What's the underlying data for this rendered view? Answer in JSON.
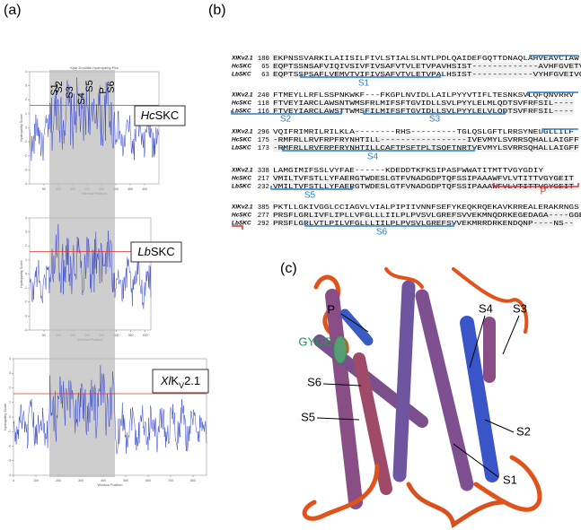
{
  "panel_a": {
    "label": "(a)",
    "plots": [
      {
        "title": "Kyte-Doolittle Hydropathy Plot",
        "xlabel": "Window Position",
        "ylabel": "Hydropathy Score",
        "label_parts": [
          {
            "text": "Hc",
            "italic": true
          },
          {
            "text": "SKC"
          }
        ],
        "xlim": [
          0,
          450
        ],
        "xticks": [
          50,
          100,
          150,
          200,
          250,
          300,
          350,
          400
        ],
        "ylim": [
          -4,
          4
        ],
        "yticks": [
          -4,
          -3,
          -2,
          -1,
          0,
          1,
          2,
          3,
          4
        ],
        "threshold": 1.6,
        "segments": [
          "S1",
          "S2",
          "S3",
          "S4",
          "S5",
          "P",
          "S6"
        ]
      },
      {
        "xlabel": "Window Position",
        "ylabel": "Hydropathy Score",
        "label_parts": [
          {
            "text": "Lb",
            "italic": true
          },
          {
            "text": "SKC"
          }
        ],
        "xlim": [
          0,
          420
        ],
        "xticks": [
          50,
          100,
          150,
          200,
          250,
          300,
          350,
          400
        ],
        "ylim": [
          -4,
          4
        ],
        "yticks": [
          -4,
          -3,
          -2,
          -1,
          0,
          1,
          2,
          3,
          4
        ],
        "threshold": 1.6
      },
      {
        "xlabel": "Window Position",
        "ylabel": "Hydropathy Score",
        "label_parts": [
          {
            "text": "Xl",
            "italic": true
          },
          {
            "text": "K"
          },
          {
            "text": "V",
            "sub": true
          },
          {
            "text": "2.1"
          }
        ],
        "xlim": [
          0,
          860
        ],
        "xticks": [
          0,
          100,
          200,
          300,
          400,
          500,
          600,
          700,
          800
        ],
        "ylim": [
          -4,
          4
        ],
        "yticks": [
          -4,
          -3,
          -2,
          -1,
          0,
          1,
          2,
          3,
          4
        ],
        "threshold": 1.6
      }
    ]
  },
  "panel_b": {
    "label": "(b)",
    "blocks": [
      {
        "rows": [
          {
            "name": "XlKv2.1",
            "start": 180,
            "seq": "EKPNSSVARKILAIISILFIVLSTIALSLNTLPDLQAIDEFGQTTDNAQLAHVEAVCIAW"
          },
          {
            "name": "HcSKC",
            "start": 65,
            "seq": "EQPTSSNSAFVIQIVSIVFIVSAFVTVLETVPAVHSIST-------------AVHFGVETVSVVAL"
          },
          {
            "name": "LbSKC",
            "start": 63,
            "seq": "EQPTSSPSAFLVEMVTVIFIVSAFVTVLETVPALHSIST------------VYHFGVEIVGLVAL"
          }
        ],
        "segments": [
          {
            "text": "S1"
          }
        ]
      },
      {
        "rows": [
          {
            "name": "XlKv2.1",
            "start": 240,
            "seq": "FTMEYLLRFLSSPNKWKF---FKGPLNVIDLLAILPYYVTIFLTESNKSVLQFQNVRRV"
          },
          {
            "name": "HcSKC",
            "start": 118,
            "seq": "FTVEYIARCLAWSNTWMSFRLMIFSFTGVIDLLSVLPYYLELMLQDTSVFRFSIL----"
          },
          {
            "name": "LbSKC",
            "start": 116,
            "seq": "FTVEYIARCLAWSTTWMSFILMIFSFTGVIDLLSVLPYYLELVLQDTSVFRFSIL----"
          }
        ],
        "segments": [
          {
            "text": "S2"
          },
          {
            "text": "S3"
          }
        ]
      },
      {
        "rows": [
          {
            "name": "XlKv2.1",
            "start": 296,
            "seq": "VQIFRIMRILRILKLA--------RHS---------TGLQSLGFTLRRSYNELGLLILF"
          },
          {
            "name": "HcSKC",
            "start": 175,
            "seq": "-RMFRLLRVFRPFRYNHTILL-----------------IVEVMYLSVRRSQHALLAIGFF"
          },
          {
            "name": "LbSKC",
            "start": 173,
            "seq": "-RMFRLLRVFRPFRYNHTILLCAFTPSFTPLTSQFTNRTVEVMYLSVRRSQHALLAIGFF"
          }
        ],
        "segments": [
          {
            "text": "S4"
          }
        ]
      },
      {
        "rows": [
          {
            "name": "XlKv2.1",
            "start": 338,
            "seq": "LAMGIMIFSSLVYFAE------KDEDDTKFKSIPASFWWATITMTTVGYGDIY"
          },
          {
            "name": "HcSKC",
            "start": 217,
            "seq": "VMILTVFSTLLYFAERGTWDESLGTFVNADGDPTQFSSIPAAAWFVLVTITTVGYGEIT"
          },
          {
            "name": "LbSKC",
            "start": 232,
            "seq": "VMILTVFSTLLYFAERGTWDESLGTFVNADGDPTQFSSIPAAAWFVLVTITTVGYGEIT"
          }
        ],
        "segments": [
          {
            "text": "S5"
          },
          {
            "text": "P",
            "pore": true
          }
        ]
      },
      {
        "rows": [
          {
            "name": "XlKv2.1",
            "start": 385,
            "seq": "PKTLLGKIVGGLCCIAGVLVIALPIPIIVNNFSEFYKEQKRQEKAVKRREALERAKRNGS"
          },
          {
            "name": "HcSKC",
            "start": 277,
            "seq": "PRSFLGRLIVFLIPLLVFGLLLIILPLPVSVLGREFSVVEKMNQDRKEGEDAGA----GGEGS"
          },
          {
            "name": "LbSKC",
            "start": 292,
            "seq": "PRSFLGRLVTLPILVFGLLLIILPLPVSVLGREFSVVEKMRRDRKENDQNP----NS--"
          }
        ],
        "segments": [
          {
            "text": "S6"
          }
        ]
      }
    ]
  },
  "panel_c": {
    "label": "(c)",
    "labels": [
      "P",
      "GYGE",
      "S6",
      "S5",
      "S4",
      "S3",
      "S2",
      "S1"
    ]
  }
}
